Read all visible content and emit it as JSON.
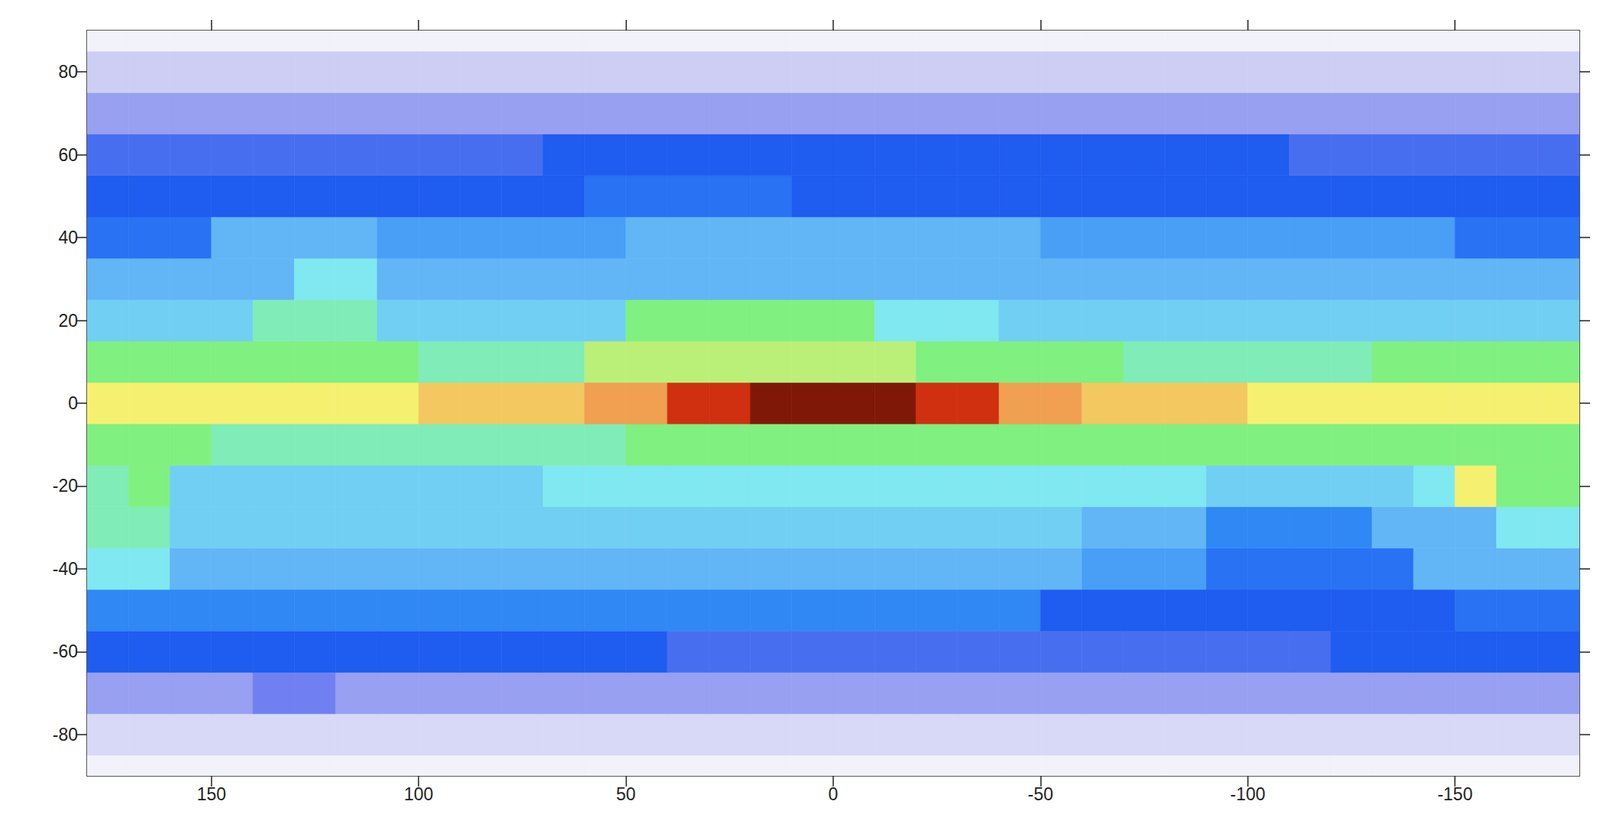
{
  "chart_data": {
    "type": "heatmap",
    "xlim": [
      180,
      -180
    ],
    "xticks": [
      150,
      100,
      50,
      0,
      -50,
      -100,
      -150
    ],
    "ylim": [
      -90,
      90
    ],
    "yticks": [
      -80,
      -60,
      -40,
      -20,
      0,
      20,
      40,
      60,
      80
    ],
    "grid": false,
    "zlim": [
      0,
      11
    ],
    "x": [
      175,
      165,
      155,
      145,
      135,
      125,
      115,
      105,
      95,
      85,
      75,
      65,
      55,
      45,
      35,
      25,
      15,
      5,
      -5,
      -15,
      -25,
      -35,
      -45,
      -55,
      -65,
      -75,
      -85,
      -95,
      -105,
      -115,
      -125,
      -135,
      -145,
      -155,
      -165,
      -175
    ],
    "y": [
      -90,
      -80,
      -70,
      -60,
      -50,
      -40,
      -30,
      -20,
      -10,
      0,
      10,
      20,
      30,
      40,
      50,
      60,
      70,
      80,
      90
    ],
    "cells": [
      [
        0,
        0,
        0,
        0,
        0,
        0,
        0,
        0,
        0,
        0,
        0,
        0,
        0,
        0,
        0,
        0,
        0,
        0,
        0,
        0,
        0,
        0,
        0,
        0,
        0,
        0,
        0,
        0,
        0,
        0,
        0,
        0,
        0,
        0,
        0,
        0
      ],
      [
        0.5,
        0.5,
        0.5,
        0.5,
        0.5,
        0.5,
        0.5,
        0.5,
        0.5,
        0.5,
        0.5,
        0.5,
        0.5,
        0.5,
        0.5,
        0.5,
        0.5,
        0.5,
        0.5,
        0.5,
        0.5,
        0.5,
        0.5,
        0.5,
        0.5,
        0.5,
        0.5,
        0.5,
        0.5,
        0.5,
        0.5,
        0.5,
        0.5,
        0.5,
        0.5,
        0.5
      ],
      [
        1.5,
        1.5,
        1.5,
        1.5,
        2,
        2,
        1.5,
        1.5,
        1.5,
        1.5,
        1.5,
        1.5,
        1.5,
        1.5,
        1.5,
        1.5,
        1.5,
        1.5,
        1.5,
        1.5,
        1.5,
        1.5,
        1.5,
        1.5,
        1.5,
        1.5,
        1.5,
        1.5,
        1.5,
        1.5,
        1.5,
        1.5,
        1.5,
        1.5,
        1.5,
        1.5
      ],
      [
        3,
        3,
        3,
        3,
        3,
        3,
        3,
        3,
        3,
        3,
        3,
        3,
        3,
        3,
        2.5,
        2.5,
        2.5,
        2.5,
        2.5,
        2.5,
        2.5,
        2.5,
        2.5,
        2.5,
        2.5,
        2.5,
        2.5,
        2.5,
        2.5,
        2.5,
        3,
        3,
        3,
        3,
        3,
        3
      ],
      [
        4,
        4,
        4,
        4,
        4,
        4,
        4,
        4,
        4,
        4,
        4,
        4,
        4,
        4,
        4,
        4,
        4,
        4,
        4,
        4,
        4,
        4,
        4,
        3,
        3,
        3,
        3,
        3,
        3,
        3,
        3,
        3,
        3,
        3.5,
        3.5,
        3.5
      ],
      [
        6,
        6,
        5,
        5,
        5,
        5,
        5,
        5,
        5,
        5,
        5,
        5,
        5,
        5,
        5,
        5,
        5,
        5,
        5,
        5,
        5,
        5,
        5,
        5,
        4.5,
        4.5,
        4.5,
        3.5,
        3.5,
        3.5,
        3.5,
        3.5,
        5,
        5,
        5,
        5
      ],
      [
        6.5,
        6.5,
        5.5,
        5.5,
        5.5,
        5.5,
        5.5,
        5.5,
        5.5,
        5.5,
        5.5,
        5.5,
        5.5,
        5.5,
        5.5,
        5.5,
        5.5,
        5.5,
        5.5,
        5.5,
        5.5,
        5.5,
        5.5,
        5.5,
        5,
        5,
        5,
        4,
        4,
        4,
        4,
        5,
        5,
        5,
        6,
        6
      ],
      [
        6.5,
        7,
        5.5,
        5.5,
        5.5,
        5.5,
        5.5,
        5.5,
        5.5,
        5.5,
        5.5,
        6,
        6,
        6,
        6,
        6,
        6,
        6,
        6,
        6,
        6,
        6,
        6,
        6,
        6,
        6,
        6,
        5.5,
        5.5,
        5.5,
        5.5,
        5.5,
        6,
        8,
        7,
        7
      ],
      [
        7,
        7,
        7,
        6.5,
        6.5,
        6.5,
        6.5,
        6.5,
        6.5,
        6.5,
        6.5,
        6.5,
        6.5,
        7,
        7,
        7,
        7,
        7,
        7,
        7,
        7,
        7,
        7,
        7,
        7,
        7,
        7,
        7,
        7,
        7,
        7,
        7,
        7,
        7,
        7,
        7
      ],
      [
        8,
        8,
        8,
        8,
        8,
        8,
        8,
        8,
        8.5,
        8.5,
        8.5,
        8.5,
        9,
        9,
        10,
        10,
        10.5,
        10.5,
        10.5,
        10.5,
        10,
        10,
        9,
        9,
        8.5,
        8.5,
        8.5,
        8.5,
        8,
        8,
        8,
        8,
        8,
        8,
        8,
        8
      ],
      [
        7,
        7,
        7,
        7,
        7,
        7,
        7,
        7,
        6.5,
        6.5,
        6.5,
        6.5,
        7.5,
        7.5,
        7.5,
        7.5,
        7.5,
        7.5,
        7.5,
        7.5,
        7,
        7,
        7,
        7,
        7,
        6.5,
        6.5,
        6.5,
        6.5,
        6.5,
        6.5,
        7,
        7,
        7,
        7,
        7
      ],
      [
        5.5,
        5.5,
        5.5,
        5.5,
        6.5,
        6.5,
        6.5,
        5.5,
        5.5,
        5.5,
        5.5,
        5.5,
        5.5,
        7,
        7,
        7,
        7,
        7,
        7,
        6,
        6,
        6,
        5.5,
        5.5,
        5.5,
        5.5,
        5.5,
        5.5,
        5.5,
        5.5,
        5.5,
        5.5,
        5.5,
        5.5,
        5.5,
        5.5
      ],
      [
        5,
        5,
        5,
        5,
        5,
        6,
        6,
        5,
        5,
        5,
        5,
        5,
        5,
        5,
        5,
        5,
        5,
        5,
        5,
        5,
        5,
        5,
        5,
        5,
        5,
        5,
        5,
        5,
        5,
        5,
        5,
        5,
        5,
        5,
        5,
        5
      ],
      [
        3.5,
        3.5,
        3.5,
        5,
        5,
        5,
        5,
        4.5,
        4.5,
        4.5,
        4.5,
        4.5,
        4.5,
        5,
        5,
        5,
        5,
        5,
        5,
        5,
        5,
        5,
        5,
        4.5,
        4.5,
        4.5,
        4.5,
        4.5,
        4.5,
        4.5,
        4.5,
        4.5,
        4.5,
        3.5,
        3.5,
        3.5
      ],
      [
        3,
        3,
        3,
        3,
        3,
        3,
        3,
        3,
        3,
        3,
        3,
        3,
        3.5,
        3.5,
        3.5,
        3.5,
        3.5,
        3,
        3,
        3,
        3,
        3,
        3,
        3,
        3,
        3,
        3,
        3,
        3,
        3,
        3,
        3,
        3,
        3,
        3,
        3
      ],
      [
        2.5,
        2.5,
        2.5,
        2.5,
        2.5,
        2.5,
        2.5,
        2.5,
        2.5,
        2.5,
        2.5,
        3,
        3,
        3,
        3,
        3,
        3,
        3,
        3,
        3,
        3,
        3,
        3,
        3,
        3,
        3,
        3,
        3,
        3,
        2.5,
        2.5,
        2.5,
        2.5,
        2.5,
        2.5,
        2.5
      ],
      [
        1.5,
        1.5,
        1.5,
        1.5,
        1.5,
        1.5,
        1.5,
        1.5,
        1.5,
        1.5,
        1.5,
        1.5,
        1.5,
        1.5,
        1.5,
        1.5,
        1.5,
        1.5,
        1.5,
        1.5,
        1.5,
        1.5,
        1.5,
        1.5,
        1.5,
        1.5,
        1.5,
        1.5,
        1.5,
        1.5,
        1.5,
        1.5,
        1.5,
        1.5,
        1.5,
        1.5
      ],
      [
        0.7,
        0.7,
        0.7,
        0.7,
        0.7,
        0.7,
        0.7,
        0.7,
        0.7,
        0.7,
        0.7,
        0.7,
        0.7,
        0.7,
        0.7,
        0.7,
        0.7,
        0.7,
        0.7,
        0.7,
        0.7,
        0.7,
        0.7,
        0.7,
        0.7,
        0.7,
        0.7,
        0.7,
        0.7,
        0.7,
        0.7,
        0.7,
        0.7,
        0.7,
        0.7,
        0.7
      ],
      [
        0,
        0,
        0,
        0,
        0,
        0,
        0,
        0,
        0,
        0,
        0,
        0,
        0,
        0,
        0,
        0,
        0,
        0,
        0,
        0,
        0,
        0,
        0,
        0,
        0,
        0,
        0,
        0,
        0,
        0,
        0,
        0,
        0,
        0,
        0,
        0
      ]
    ]
  }
}
